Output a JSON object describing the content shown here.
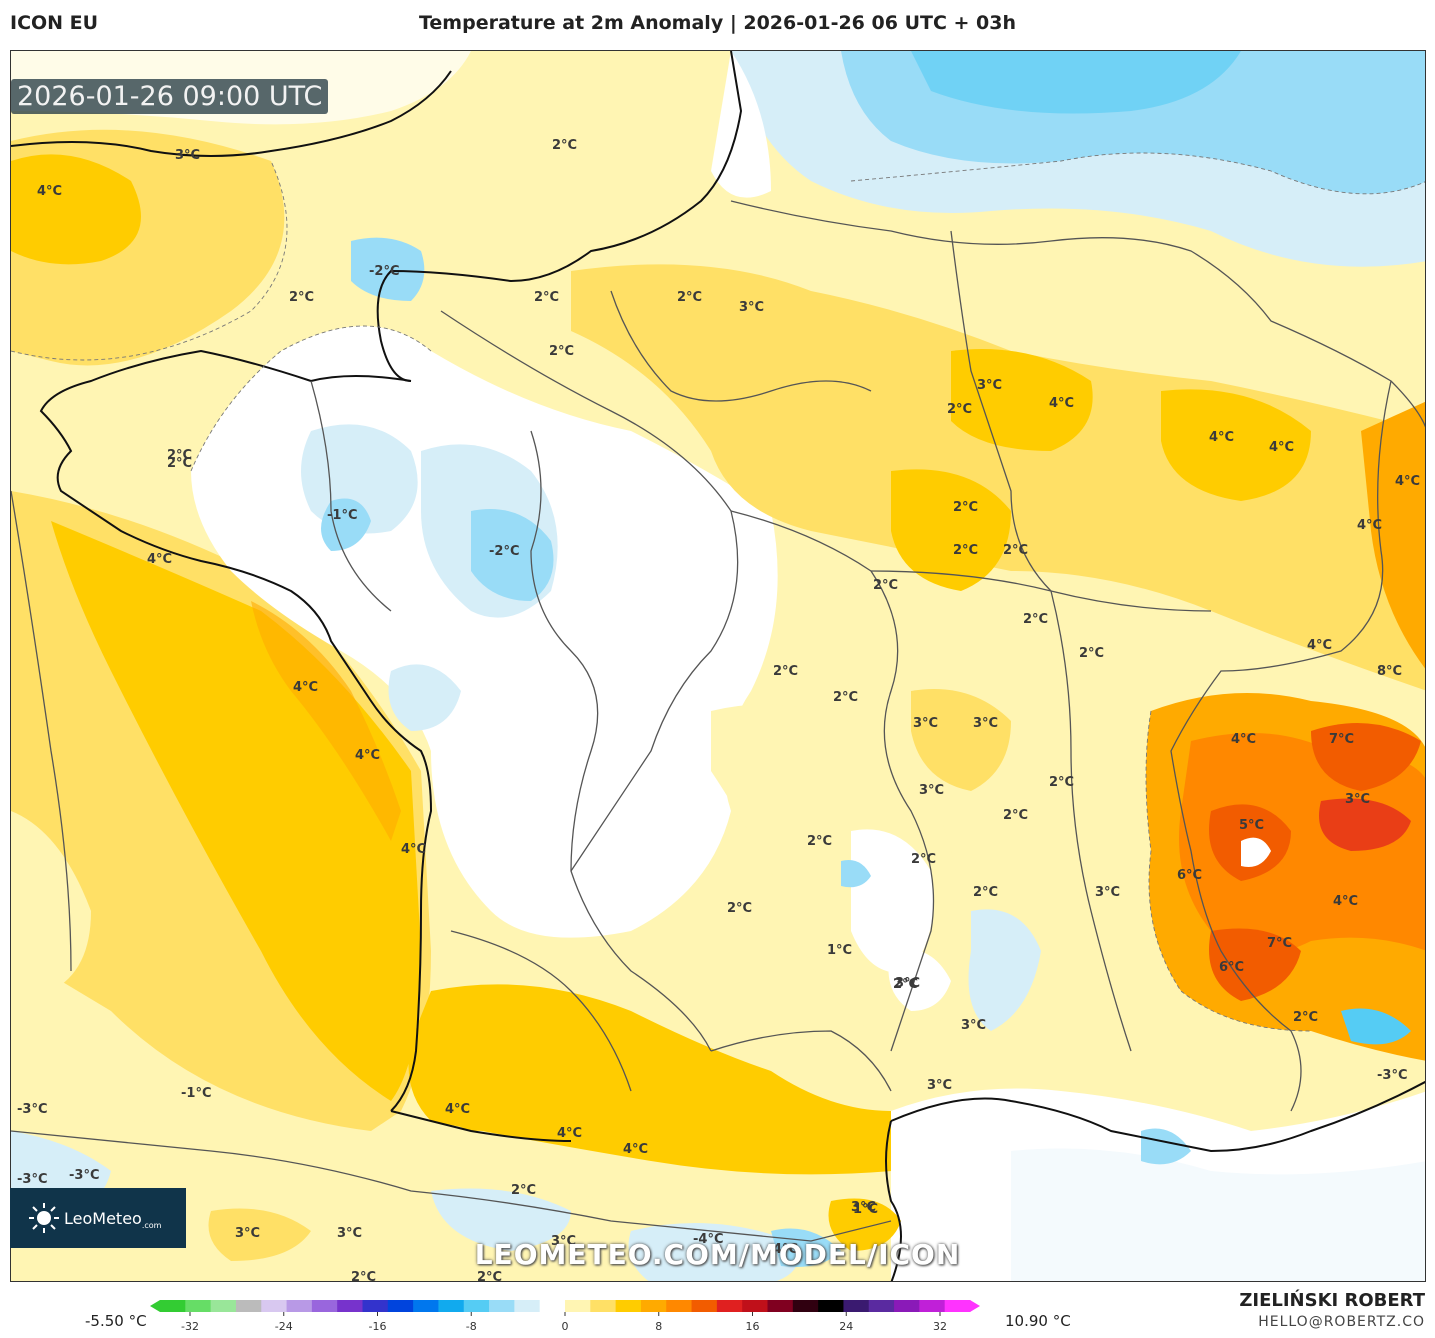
{
  "header": {
    "model": "ICON EU",
    "title": "Temperature at 2m Anomaly | 2026-01-26 06 UTC + 03h"
  },
  "valid_time": "2026-01-26 09:00 UTC",
  "watermark": "LEOMETEO.COM/MODEL/ICON",
  "logo": {
    "brand": "LeoMeteo",
    "suffix": ".com"
  },
  "colorbar": {
    "min_label": "-5.50 °C",
    "max_label": "10.90 °C",
    "ticks": [
      "-32",
      "-24",
      "-16",
      "-8",
      "0",
      "8",
      "16",
      "24",
      "32"
    ],
    "colors": [
      "#33cc33",
      "#66dd66",
      "#99e699",
      "#bbbbbb",
      "#d8c8f0",
      "#b899e6",
      "#9966dd",
      "#7733cc",
      "#3333cc",
      "#0044dd",
      "#0077ee",
      "#11aaee",
      "#55ccf4",
      "#99dcf7",
      "#d6eef8",
      "#ffffff",
      "#fff5b3",
      "#ffe066",
      "#ffcc00",
      "#ffaa00",
      "#ff8800",
      "#f25c00",
      "#e02020",
      "#c0101a",
      "#800020",
      "#300010",
      "#000000",
      "#3a1a70",
      "#5a2aa0",
      "#8a1ab8",
      "#c020d8",
      "#ff33ff"
    ]
  },
  "credit": {
    "name": "ZIELIŃSKI ROBERT",
    "email": "HELLO@ROBERTZ.CO"
  },
  "map_labels": [
    "4°C",
    "3°C",
    "2°C",
    "-2°C",
    "2°C",
    "2°C",
    "2°C",
    "3°C",
    "2°C",
    "2°C",
    "2°C",
    "-1°C",
    "4°C",
    "-2°C",
    "4°C",
    "4°C",
    "4°C",
    "2°C",
    "3°C",
    "4°C",
    "4°C",
    "4°C",
    "4°C",
    "4°C",
    "2°C",
    "2°C",
    "2°C",
    "2°C",
    "2°C",
    "2°C",
    "2°C",
    "2°C",
    "3°C",
    "3°C",
    "4°C",
    "7°C",
    "8°C",
    "5°C",
    "6°C",
    "4°C",
    "7°C",
    "6°C",
    "4°C",
    "3°C",
    "3°C",
    "2°C",
    "2°C",
    "2°C",
    "3°C",
    "2°C",
    "2°C",
    "2°C",
    "1°C",
    "2°C",
    "3°C",
    "3°C",
    "4°C",
    "4°C",
    "4°C",
    "3°C",
    "-1°C",
    "-3°C",
    "-3°C",
    "-3°C",
    "2°C",
    "3°C",
    "3°C",
    "3°C",
    "2°C",
    "2°C",
    "-4°C",
    "4°C",
    "1°C",
    "3°C",
    "-3°C",
    "2°C"
  ],
  "colors": {
    "cold_light": "#d6eef8",
    "cold": "#99dcf7",
    "warm_light": "#fff5b3",
    "warm": "#ffe066",
    "warm_mid": "#ffcc00",
    "hot": "#ffaa00",
    "hotter": "#ff8800",
    "hottest": "#f25c00"
  }
}
